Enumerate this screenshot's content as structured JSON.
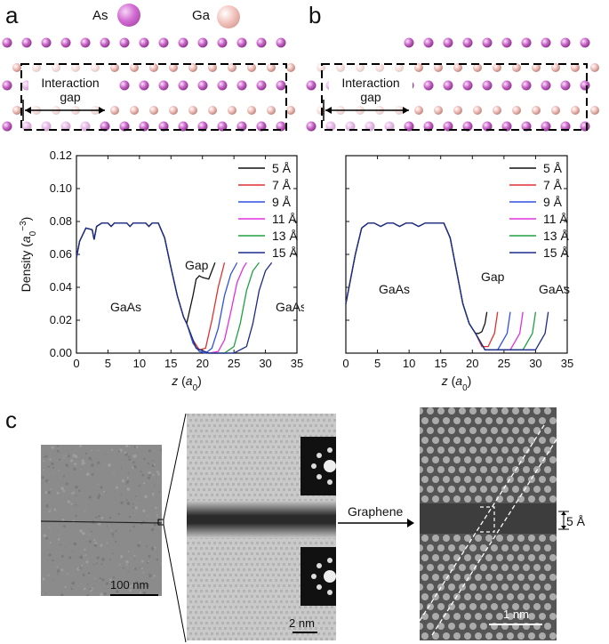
{
  "panels": {
    "a": "a",
    "b": "b",
    "c": "c"
  },
  "atom_legend": {
    "as_label": "As",
    "ga_label": "Ga",
    "as_color": "#cc66cc",
    "ga_color": "#efbcb6"
  },
  "interaction_gap_label": [
    "Interaction",
    "gap"
  ],
  "chart_data": [
    {
      "type": "line",
      "panel": "a",
      "xlabel": "z (a0)",
      "ylabel": "Density (a0^-3)",
      "xlim": [
        0,
        35
      ],
      "ylim": [
        0,
        0.12
      ],
      "x_ticks": [
        "0",
        "5",
        "10",
        "15",
        "20",
        "25",
        "30",
        "35"
      ],
      "y_ticks": [
        "0.00",
        "0.02",
        "0.04",
        "0.06",
        "0.08",
        "0.10",
        "0.12"
      ],
      "annotations": [
        "Gap",
        "GaAs",
        "GaAs"
      ],
      "series": [
        {
          "name": "5 Å",
          "color": "#111111",
          "x": [
            17.5,
            18.5,
            19.0,
            19.5,
            20.0,
            21.0,
            22.0
          ],
          "y": [
            0.018,
            0.035,
            0.045,
            0.047,
            0.046,
            0.045,
            0.055
          ]
        },
        {
          "name": "7 Å",
          "color": "#e03030",
          "x": [
            17.5,
            18.5,
            19.5,
            20.5,
            21.5,
            22.5,
            23.5
          ],
          "y": [
            0.018,
            0.008,
            0.002,
            0.003,
            0.02,
            0.04,
            0.055
          ]
        },
        {
          "name": "9 Å",
          "color": "#3050e0",
          "x": [
            17.5,
            18.5,
            19.5,
            20.5,
            21.5,
            22.5,
            23.5,
            24.5,
            25.5
          ],
          "y": [
            0.018,
            0.006,
            0.001,
            0.0,
            0.003,
            0.015,
            0.035,
            0.048,
            0.055
          ]
        },
        {
          "name": "11 Å",
          "color": "#e030e0",
          "x": [
            17.5,
            19.0,
            21.0,
            22.5,
            23.5,
            24.5,
            25.5,
            26.5,
            27.0
          ],
          "y": [
            0.018,
            0.003,
            0.0,
            0.001,
            0.008,
            0.025,
            0.043,
            0.052,
            0.055
          ]
        },
        {
          "name": "13 Å",
          "color": "#20a040",
          "x": [
            17.5,
            19.0,
            21.0,
            23.5,
            25.0,
            26.0,
            27.0,
            28.0,
            29.0
          ],
          "y": [
            0.018,
            0.003,
            0.0,
            0.0,
            0.004,
            0.018,
            0.038,
            0.05,
            0.055
          ]
        },
        {
          "name": "15 Å",
          "color": "#1c2a8a",
          "x": [
            17.5,
            19.0,
            21.0,
            25.0,
            27.0,
            28.0,
            29.0,
            30.0,
            31.0
          ],
          "y": [
            0.018,
            0.003,
            0.0,
            0.0,
            0.004,
            0.018,
            0.038,
            0.05,
            0.055
          ]
        }
      ],
      "common": {
        "x": [
          0,
          0.5,
          1.5,
          2.5,
          2.8,
          3.2,
          4,
          5,
          5.5,
          6,
          7,
          8,
          8.5,
          9,
          10,
          11,
          11.5,
          12,
          13,
          14,
          15,
          16,
          17,
          17.5
        ],
        "y": [
          0.058,
          0.068,
          0.076,
          0.075,
          0.069,
          0.077,
          0.079,
          0.079,
          0.077,
          0.079,
          0.079,
          0.079,
          0.077,
          0.079,
          0.079,
          0.079,
          0.077,
          0.079,
          0.079,
          0.07,
          0.052,
          0.035,
          0.022,
          0.018
        ]
      }
    },
    {
      "type": "line",
      "panel": "b",
      "xlabel": "z (a0)",
      "xlim": [
        0,
        35
      ],
      "ylim": [
        0,
        0.12
      ],
      "x_ticks": [
        "0",
        "5",
        "10",
        "15",
        "20",
        "25",
        "30",
        "35"
      ],
      "annotations": [
        "Gap",
        "GaAs",
        "GaAs"
      ],
      "series": [
        {
          "name": "5 Å",
          "color": "#111111",
          "x": [
            20.5,
            21.0,
            21.5,
            22.0,
            22.3
          ],
          "y": [
            0.012,
            0.012,
            0.013,
            0.018,
            0.025
          ]
        },
        {
          "name": "7 Å",
          "color": "#e03030",
          "x": [
            20.5,
            21.5,
            22.5,
            23.5,
            24.0
          ],
          "y": [
            0.012,
            0.004,
            0.004,
            0.012,
            0.025
          ]
        },
        {
          "name": "9 Å",
          "color": "#3050e0",
          "x": [
            20.5,
            22.0,
            24.0,
            25.5,
            26.0
          ],
          "y": [
            0.012,
            0.002,
            0.002,
            0.012,
            0.025
          ]
        },
        {
          "name": "11 Å",
          "color": "#e030e0",
          "x": [
            20.5,
            22.0,
            26.0,
            27.5,
            28.0
          ],
          "y": [
            0.012,
            0.002,
            0.002,
            0.012,
            0.025
          ]
        },
        {
          "name": "13 Å",
          "color": "#20a040",
          "x": [
            20.5,
            22.0,
            28.0,
            29.5,
            30.0
          ],
          "y": [
            0.012,
            0.002,
            0.002,
            0.012,
            0.025
          ]
        },
        {
          "name": "15 Å",
          "color": "#1c2a8a",
          "x": [
            20.5,
            22.0,
            30.0,
            31.5,
            32.0
          ],
          "y": [
            0.012,
            0.002,
            0.002,
            0.012,
            0.025
          ]
        }
      ],
      "common": {
        "x": [
          0,
          0.5,
          1.5,
          2.5,
          3.5,
          4.5,
          5.5,
          6.5,
          7.5,
          8.5,
          9.5,
          10.5,
          11.5,
          12.5,
          13.5,
          14.5,
          15.5,
          16.5,
          17.5,
          18.5,
          19.5,
          20.5
        ],
        "y": [
          0.03,
          0.04,
          0.06,
          0.076,
          0.079,
          0.079,
          0.077,
          0.079,
          0.079,
          0.077,
          0.079,
          0.079,
          0.077,
          0.079,
          0.079,
          0.079,
          0.079,
          0.07,
          0.05,
          0.03,
          0.018,
          0.012
        ]
      }
    }
  ],
  "legend_labels": [
    "5 Å",
    "7 Å",
    "9 Å",
    "11 Å",
    "13 Å",
    "15 Å"
  ],
  "tem": {
    "scale_100nm": "100 nm",
    "scale_2nm": "2 nm",
    "scale_1nm": "1 nm",
    "graphene_label": "Graphene",
    "gap_width": "5 Å"
  }
}
